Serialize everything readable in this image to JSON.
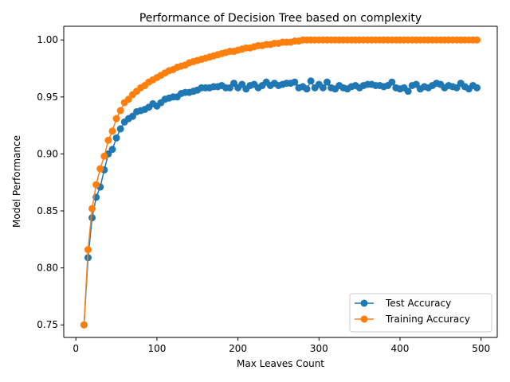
{
  "chart_data": {
    "type": "line",
    "title": "Performance of Decision Tree based on complexity",
    "xlabel": "Max Leaves Count",
    "ylabel": "Model Performance",
    "xlim": [
      -15,
      520
    ],
    "ylim": [
      0.739,
      1.012
    ],
    "xticks": [
      0,
      100,
      200,
      300,
      400,
      500
    ],
    "yticks": [
      0.75,
      0.8,
      0.85,
      0.9,
      0.95,
      1.0
    ],
    "xtick_labels": [
      "0",
      "100",
      "200",
      "300",
      "400",
      "500"
    ],
    "ytick_labels": [
      "0.75",
      "0.80",
      "0.85",
      "0.90",
      "0.95",
      "1.00"
    ],
    "grid": false,
    "legend_position": "bottom-right",
    "x": [
      10,
      15,
      20,
      25,
      30,
      35,
      40,
      45,
      50,
      55,
      60,
      65,
      70,
      75,
      80,
      85,
      90,
      95,
      100,
      105,
      110,
      115,
      120,
      125,
      130,
      135,
      140,
      145,
      150,
      155,
      160,
      165,
      170,
      175,
      180,
      185,
      190,
      195,
      200,
      205,
      210,
      215,
      220,
      225,
      230,
      235,
      240,
      245,
      250,
      255,
      260,
      265,
      270,
      275,
      280,
      285,
      290,
      295,
      300,
      305,
      310,
      315,
      320,
      325,
      330,
      335,
      340,
      345,
      350,
      355,
      360,
      365,
      370,
      375,
      380,
      385,
      390,
      395,
      400,
      405,
      410,
      415,
      420,
      425,
      430,
      435,
      440,
      445,
      450,
      455,
      460,
      465,
      470,
      475,
      480,
      485,
      490,
      495
    ],
    "series": [
      {
        "name": "Test Accuracy",
        "color": "#1f77b4",
        "values": [
          0.75,
          0.809,
          0.844,
          0.862,
          0.871,
          0.886,
          0.9,
          0.904,
          0.914,
          0.922,
          0.928,
          0.931,
          0.933,
          0.937,
          0.938,
          0.939,
          0.941,
          0.944,
          0.942,
          0.945,
          0.948,
          0.949,
          0.95,
          0.95,
          0.953,
          0.954,
          0.954,
          0.955,
          0.956,
          0.958,
          0.958,
          0.958,
          0.959,
          0.959,
          0.96,
          0.958,
          0.958,
          0.962,
          0.958,
          0.961,
          0.957,
          0.96,
          0.961,
          0.958,
          0.96,
          0.963,
          0.96,
          0.962,
          0.96,
          0.961,
          0.962,
          0.962,
          0.963,
          0.958,
          0.959,
          0.957,
          0.964,
          0.958,
          0.961,
          0.958,
          0.963,
          0.958,
          0.957,
          0.96,
          0.958,
          0.957,
          0.959,
          0.96,
          0.958,
          0.96,
          0.961,
          0.961,
          0.96,
          0.96,
          0.959,
          0.96,
          0.963,
          0.958,
          0.957,
          0.958,
          0.955,
          0.96,
          0.961,
          0.957,
          0.959,
          0.958,
          0.96,
          0.962,
          0.961,
          0.958,
          0.96,
          0.959,
          0.958,
          0.962,
          0.959,
          0.957,
          0.96,
          0.958
        ]
      },
      {
        "name": "Training Accuracy",
        "color": "#ff7f0e",
        "values": [
          0.75,
          0.816,
          0.852,
          0.873,
          0.887,
          0.898,
          0.912,
          0.92,
          0.931,
          0.938,
          0.945,
          0.948,
          0.952,
          0.955,
          0.958,
          0.96,
          0.963,
          0.965,
          0.967,
          0.969,
          0.971,
          0.973,
          0.974,
          0.976,
          0.977,
          0.978,
          0.98,
          0.981,
          0.982,
          0.983,
          0.984,
          0.985,
          0.986,
          0.987,
          0.988,
          0.989,
          0.99,
          0.99,
          0.991,
          0.992,
          0.993,
          0.993,
          0.994,
          0.995,
          0.995,
          0.996,
          0.996,
          0.997,
          0.997,
          0.998,
          0.998,
          0.998,
          0.999,
          0.999,
          1.0,
          1.0,
          1.0,
          1.0,
          1.0,
          1.0,
          1.0,
          1.0,
          1.0,
          1.0,
          1.0,
          1.0,
          1.0,
          1.0,
          1.0,
          1.0,
          1.0,
          1.0,
          1.0,
          1.0,
          1.0,
          1.0,
          1.0,
          1.0,
          1.0,
          1.0,
          1.0,
          1.0,
          1.0,
          1.0,
          1.0,
          1.0,
          1.0,
          1.0,
          1.0,
          1.0,
          1.0,
          1.0,
          1.0,
          1.0,
          1.0,
          1.0,
          1.0,
          1.0
        ]
      }
    ]
  }
}
